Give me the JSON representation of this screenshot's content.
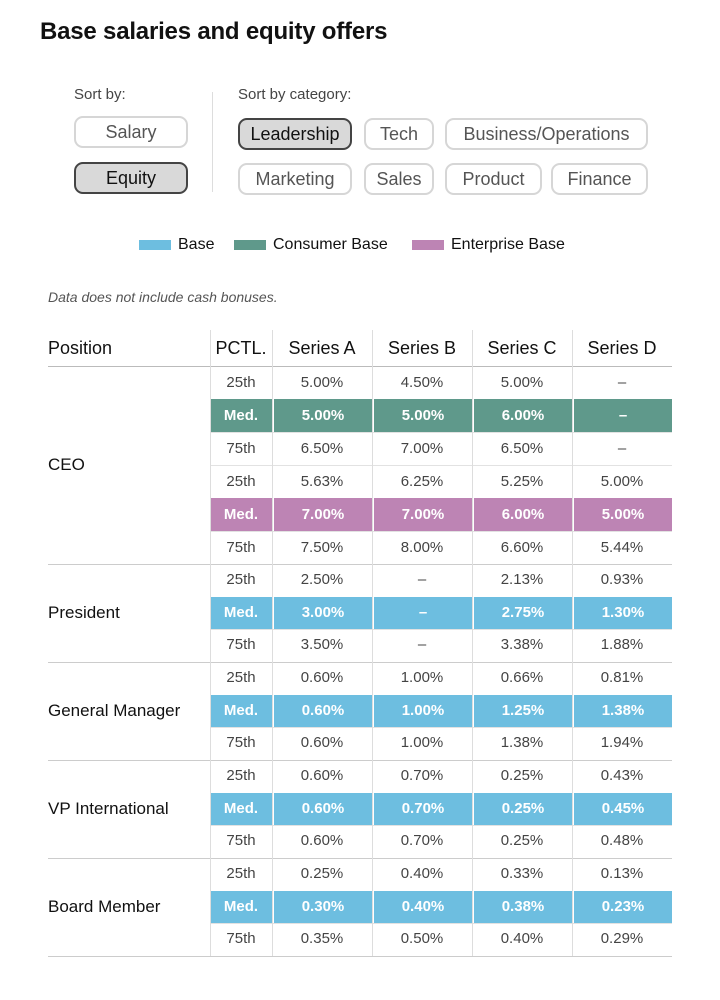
{
  "title": "Base salaries and equity offers",
  "sort_by": {
    "label": "Sort by:",
    "options": [
      {
        "label": "Salary",
        "active": false
      },
      {
        "label": "Equity",
        "active": true
      }
    ]
  },
  "sort_by_category": {
    "label": "Sort by category:",
    "options": [
      {
        "label": "Leadership",
        "active": true
      },
      {
        "label": "Tech",
        "active": false
      },
      {
        "label": "Business/Operations",
        "active": false
      },
      {
        "label": "Marketing",
        "active": false
      },
      {
        "label": "Sales",
        "active": false
      },
      {
        "label": "Product",
        "active": false
      },
      {
        "label": "Finance",
        "active": false
      }
    ]
  },
  "legend": [
    {
      "label": "Base",
      "color": "#6dbee0"
    },
    {
      "label": "Consumer Base",
      "color": "#5f998b"
    },
    {
      "label": "Enterprise Base",
      "color": "#bd84b4"
    }
  ],
  "note": "Data does not include cash bonuses.",
  "table": {
    "headers": [
      "Position",
      "PCTL.",
      "Series A",
      "Series B",
      "Series C",
      "Series D"
    ],
    "groups": [
      {
        "position": "CEO",
        "rows": [
          {
            "pctl": "25th",
            "values": [
              "5.00%",
              "4.50%",
              "5.00%",
              "–"
            ]
          },
          {
            "pctl": "Med.",
            "values": [
              "5.00%",
              "5.00%",
              "6.00%",
              "–"
            ],
            "highlight": "#5f998b"
          },
          {
            "pctl": "75th",
            "values": [
              "6.50%",
              "7.00%",
              "6.50%",
              "–"
            ]
          },
          {
            "pctl": "25th",
            "values": [
              "5.63%",
              "6.25%",
              "5.25%",
              "5.00%"
            ]
          },
          {
            "pctl": "Med.",
            "values": [
              "7.00%",
              "7.00%",
              "6.00%",
              "5.00%"
            ],
            "highlight": "#bd84b4"
          },
          {
            "pctl": "75th",
            "values": [
              "7.50%",
              "8.00%",
              "6.60%",
              "5.44%"
            ]
          }
        ]
      },
      {
        "position": "President",
        "rows": [
          {
            "pctl": "25th",
            "values": [
              "2.50%",
              "–",
              "2.13%",
              "0.93%"
            ]
          },
          {
            "pctl": "Med.",
            "values": [
              "3.00%",
              "–",
              "2.75%",
              "1.30%"
            ],
            "highlight": "#6dbee0"
          },
          {
            "pctl": "75th",
            "values": [
              "3.50%",
              "–",
              "3.38%",
              "1.88%"
            ]
          }
        ]
      },
      {
        "position": "General Manager",
        "rows": [
          {
            "pctl": "25th",
            "values": [
              "0.60%",
              "1.00%",
              "0.66%",
              "0.81%"
            ]
          },
          {
            "pctl": "Med.",
            "values": [
              "0.60%",
              "1.00%",
              "1.25%",
              "1.38%"
            ],
            "highlight": "#6dbee0"
          },
          {
            "pctl": "75th",
            "values": [
              "0.60%",
              "1.00%",
              "1.38%",
              "1.94%"
            ]
          }
        ]
      },
      {
        "position": "VP International",
        "rows": [
          {
            "pctl": "25th",
            "values": [
              "0.60%",
              "0.70%",
              "0.25%",
              "0.43%"
            ]
          },
          {
            "pctl": "Med.",
            "values": [
              "0.60%",
              "0.70%",
              "0.25%",
              "0.45%"
            ],
            "highlight": "#6dbee0"
          },
          {
            "pctl": "75th",
            "values": [
              "0.60%",
              "0.70%",
              "0.25%",
              "0.48%"
            ]
          }
        ]
      },
      {
        "position": "Board Member",
        "rows": [
          {
            "pctl": "25th",
            "values": [
              "0.25%",
              "0.40%",
              "0.33%",
              "0.13%"
            ]
          },
          {
            "pctl": "Med.",
            "values": [
              "0.30%",
              "0.40%",
              "0.38%",
              "0.23%"
            ],
            "highlight": "#6dbee0"
          },
          {
            "pctl": "75th",
            "values": [
              "0.35%",
              "0.50%",
              "0.40%",
              "0.29%"
            ]
          }
        ]
      }
    ]
  }
}
